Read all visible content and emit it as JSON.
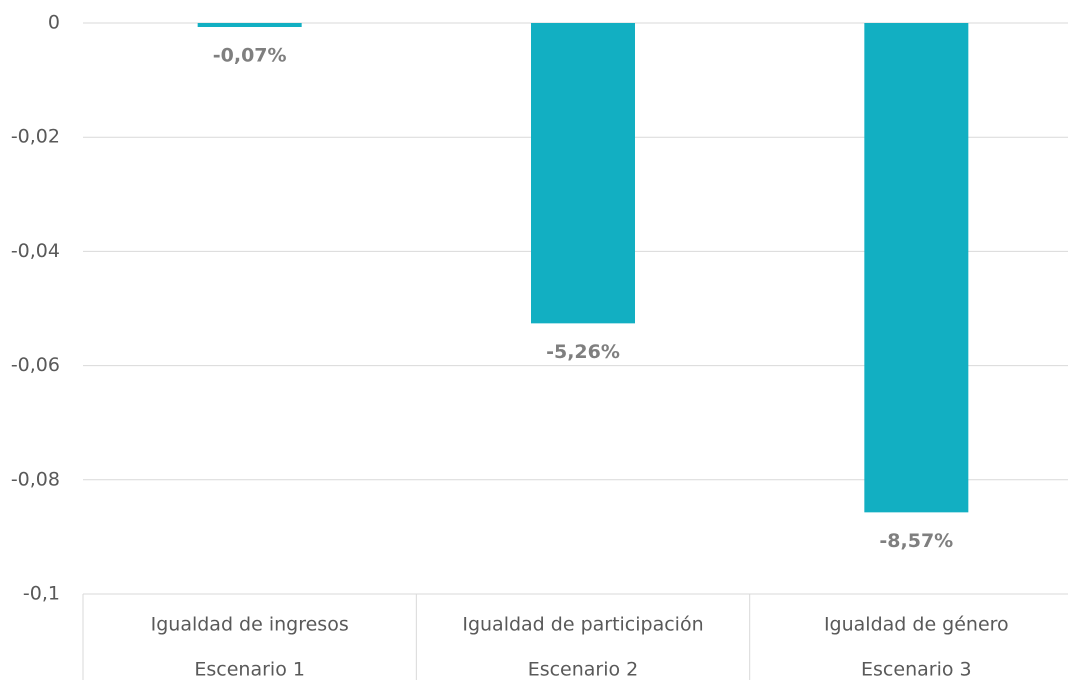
{
  "chart_data": {
    "type": "bar",
    "categories": [
      "Igualdad de ingresos",
      "Igualdad de participación",
      "Igualdad de género"
    ],
    "scenarios": [
      "Escenario 1",
      "Escenario 2",
      "Escenario 3"
    ],
    "values": [
      -0.0007,
      -0.0526,
      -0.0857
    ],
    "value_labels": [
      "-0,07%",
      "-5,26%",
      "-8,57%"
    ],
    "color": "#12afc2",
    "ylim": [
      0,
      -0.1
    ],
    "yticks": [
      0,
      {
        "value": -0.02,
        "label": "-0,02"
      },
      {
        "value": -0.04,
        "label": "-0,04"
      },
      {
        "value": -0.06,
        "label": "-0,06"
      },
      {
        "value": -0.08,
        "label": "-0,08"
      },
      {
        "value": -0.1,
        "label": "-0,1"
      }
    ],
    "grid": true
  }
}
